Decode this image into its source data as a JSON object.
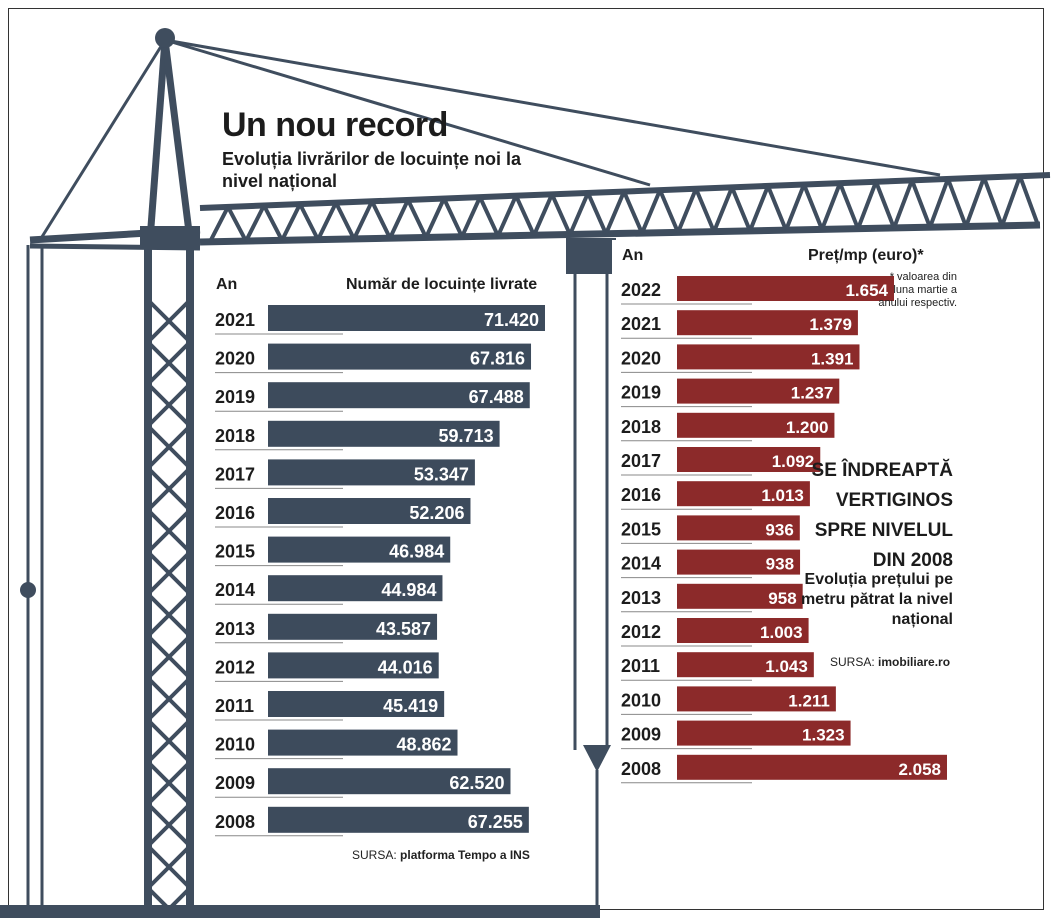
{
  "title": "Un nou record",
  "subtitle": "Evoluția livrărilor de locuințe noi la nivel național",
  "colors": {
    "left_bar": "#3d4b5c",
    "right_bar": "#8c2a2a",
    "crane": "#3f4d5e",
    "text": "#1c1c1c"
  },
  "chart_data": [
    {
      "type": "bar",
      "orientation": "horizontal",
      "col_header_year": "An",
      "col_header_value": "Număr de locuințe livrate",
      "categories": [
        "2021",
        "2020",
        "2019",
        "2018",
        "2017",
        "2016",
        "2015",
        "2014",
        "2013",
        "2012",
        "2011",
        "2010",
        "2009",
        "2008"
      ],
      "values": [
        71420,
        67816,
        67488,
        59713,
        53347,
        52206,
        46984,
        44984,
        43587,
        44016,
        45419,
        48862,
        62520,
        67255
      ],
      "value_labels": [
        "71.420",
        "67.816",
        "67.488",
        "59.713",
        "53.347",
        "52.206",
        "46.984",
        "44.984",
        "43.587",
        "44.016",
        "45.419",
        "48.862",
        "62.520",
        "67.255"
      ],
      "source_label": "SURSA:",
      "source_name": "platforma Tempo a INS"
    },
    {
      "type": "bar",
      "orientation": "horizontal",
      "col_header_year": "An",
      "col_header_value": "Preț/mp (euro)*",
      "categories": [
        "2022",
        "2021",
        "2020",
        "2019",
        "2018",
        "2017",
        "2016",
        "2015",
        "2014",
        "2013",
        "2012",
        "2011",
        "2010",
        "2009",
        "2008"
      ],
      "values": [
        1654,
        1379,
        1391,
        1237,
        1200,
        1092,
        1013,
        936,
        938,
        958,
        1003,
        1043,
        1211,
        1323,
        2058
      ],
      "value_labels": [
        "1.654",
        "1.379",
        "1.391",
        "1.237",
        "1.200",
        "1.092",
        "1.013",
        "936",
        "938",
        "958",
        "1.003",
        "1.043",
        "1.211",
        "1.323",
        "2.058"
      ],
      "note": "* valoarea din luna martie a anului respectiv.",
      "headline": "SE ÎNDREAPTĂ VERTIGINOS SPRE NIVELUL DIN 2008",
      "subheadline": "Evoluția prețului pe metru pătrat la nivel național",
      "source_label": "SURSA:",
      "source_name": "imobiliare.ro"
    }
  ]
}
